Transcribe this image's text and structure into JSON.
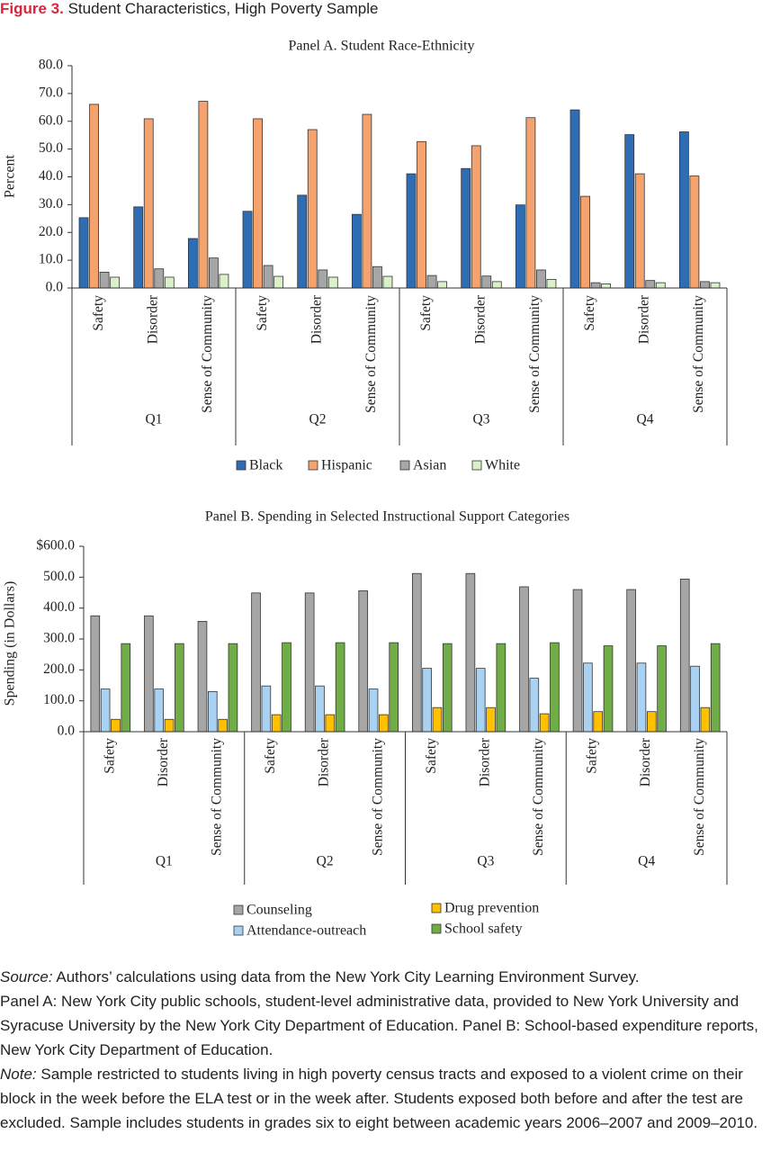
{
  "figure": {
    "label": "Figure 3.",
    "title": "Student Characteristics, High Poverty Sample"
  },
  "chart_data": [
    {
      "type": "bar",
      "title": "Panel A. Student Race-Ethnicity",
      "ylabel": "Percent",
      "categories": [
        "Safety",
        "Disorder",
        "Sense of Community",
        "Safety",
        "Disorder",
        "Sense of Community",
        "Safety",
        "Disorder",
        "Sense of Community",
        "Safety",
        "Disorder",
        "Sense of Community"
      ],
      "groups": [
        "Q1",
        "Q2",
        "Q3",
        "Q4"
      ],
      "series": [
        {
          "name": "Black",
          "color": "#2e6db4",
          "values": [
            25.3,
            29.2,
            17.8,
            27.6,
            33.4,
            26.5,
            41.1,
            43.0,
            29.9,
            64.1,
            55.2,
            56.2
          ]
        },
        {
          "name": "Hispanic",
          "color": "#f4a36e",
          "values": [
            66.1,
            60.9,
            67.2,
            60.9,
            57.0,
            62.5,
            52.7,
            51.2,
            61.3,
            33.0,
            41.1,
            40.3
          ]
        },
        {
          "name": "Asian",
          "color": "#a6a6a6",
          "values": [
            5.7,
            6.9,
            10.8,
            8.1,
            6.5,
            7.7,
            4.5,
            4.3,
            6.5,
            1.9,
            2.7,
            2.3
          ]
        },
        {
          "name": "White",
          "color": "#d9f0c8",
          "values": [
            3.9,
            3.9,
            4.9,
            4.2,
            3.9,
            4.2,
            2.3,
            2.3,
            3.1,
            1.5,
            1.9,
            1.9
          ]
        }
      ],
      "ylim": [
        0,
        80
      ],
      "yticks": [
        {
          "value": 0,
          "label": "0.0"
        },
        {
          "value": 10,
          "label": "10.0"
        },
        {
          "value": 20,
          "label": "20.0"
        },
        {
          "value": 30,
          "label": "30.0"
        },
        {
          "value": 40,
          "label": "40.0"
        },
        {
          "value": 50,
          "label": "50.0"
        },
        {
          "value": 60,
          "label": "60.0"
        },
        {
          "value": 70,
          "label": "70.0"
        },
        {
          "value": 80,
          "label": "80.0"
        }
      ],
      "grid": false,
      "legend": "bottom"
    },
    {
      "type": "bar",
      "title": "Panel B. Spending in Selected Instructional Support Categories",
      "ylabel": "Spending (in Dollars)",
      "categories": [
        "Safety",
        "Disorder",
        "Sense of Community",
        "Safety",
        "Disorder",
        "Sense of Community",
        "Safety",
        "Disorder",
        "Sense of Community",
        "Safety",
        "Disorder",
        "Sense of Community"
      ],
      "groups": [
        "Q1",
        "Q2",
        "Q3",
        "Q4"
      ],
      "series": [
        {
          "name": "Counseling",
          "color": "#a6a6a6",
          "values": [
            375,
            375,
            357,
            449,
            449,
            456,
            512,
            512,
            469,
            460,
            460,
            494
          ]
        },
        {
          "name": "Attendance-outreach",
          "color": "#a9d2f2",
          "values": [
            138,
            138,
            130,
            148,
            148,
            138,
            205,
            205,
            173,
            222,
            222,
            212
          ]
        },
        {
          "name": "Drug prevention",
          "color": "#ffc000",
          "values": [
            40,
            40,
            40,
            55,
            55,
            55,
            78,
            78,
            58,
            65,
            65,
            78
          ]
        },
        {
          "name": "School safety",
          "color": "#70ad47",
          "values": [
            285,
            285,
            285,
            288,
            288,
            288,
            285,
            285,
            288,
            278,
            278,
            285
          ]
        }
      ],
      "ylim": [
        0,
        600
      ],
      "yticks": [
        {
          "value": 0,
          "label": "0.0"
        },
        {
          "value": 100,
          "label": "100.0"
        },
        {
          "value": 200,
          "label": "200.0"
        },
        {
          "value": 300,
          "label": "300.0"
        },
        {
          "value": 400,
          "label": "400.0"
        },
        {
          "value": 500,
          "label": "500.0"
        },
        {
          "value": 600,
          "label": "$600.0"
        }
      ],
      "grid": false,
      "legend": "bottom"
    }
  ],
  "notes": {
    "source_label": "Source:",
    "source": "Authors’ calculations using data from the New York City Learning Environment Survey.",
    "panels": "Panel A: New York City public schools, student-level administrative data, provided to New York University and Syracuse University by the New York City Department of Education. Panel B: School-based expenditure reports, New York City Department of Education.",
    "note_label": "Note:",
    "note": "Sample restricted to students living in high poverty census tracts and exposed to a violent crime on their block in the week before the ELA test or in the week after. Students exposed both before and after the test are excluded. Sample includes students in grades six to eight between academic years 2006–2007 and 2009–2010."
  }
}
